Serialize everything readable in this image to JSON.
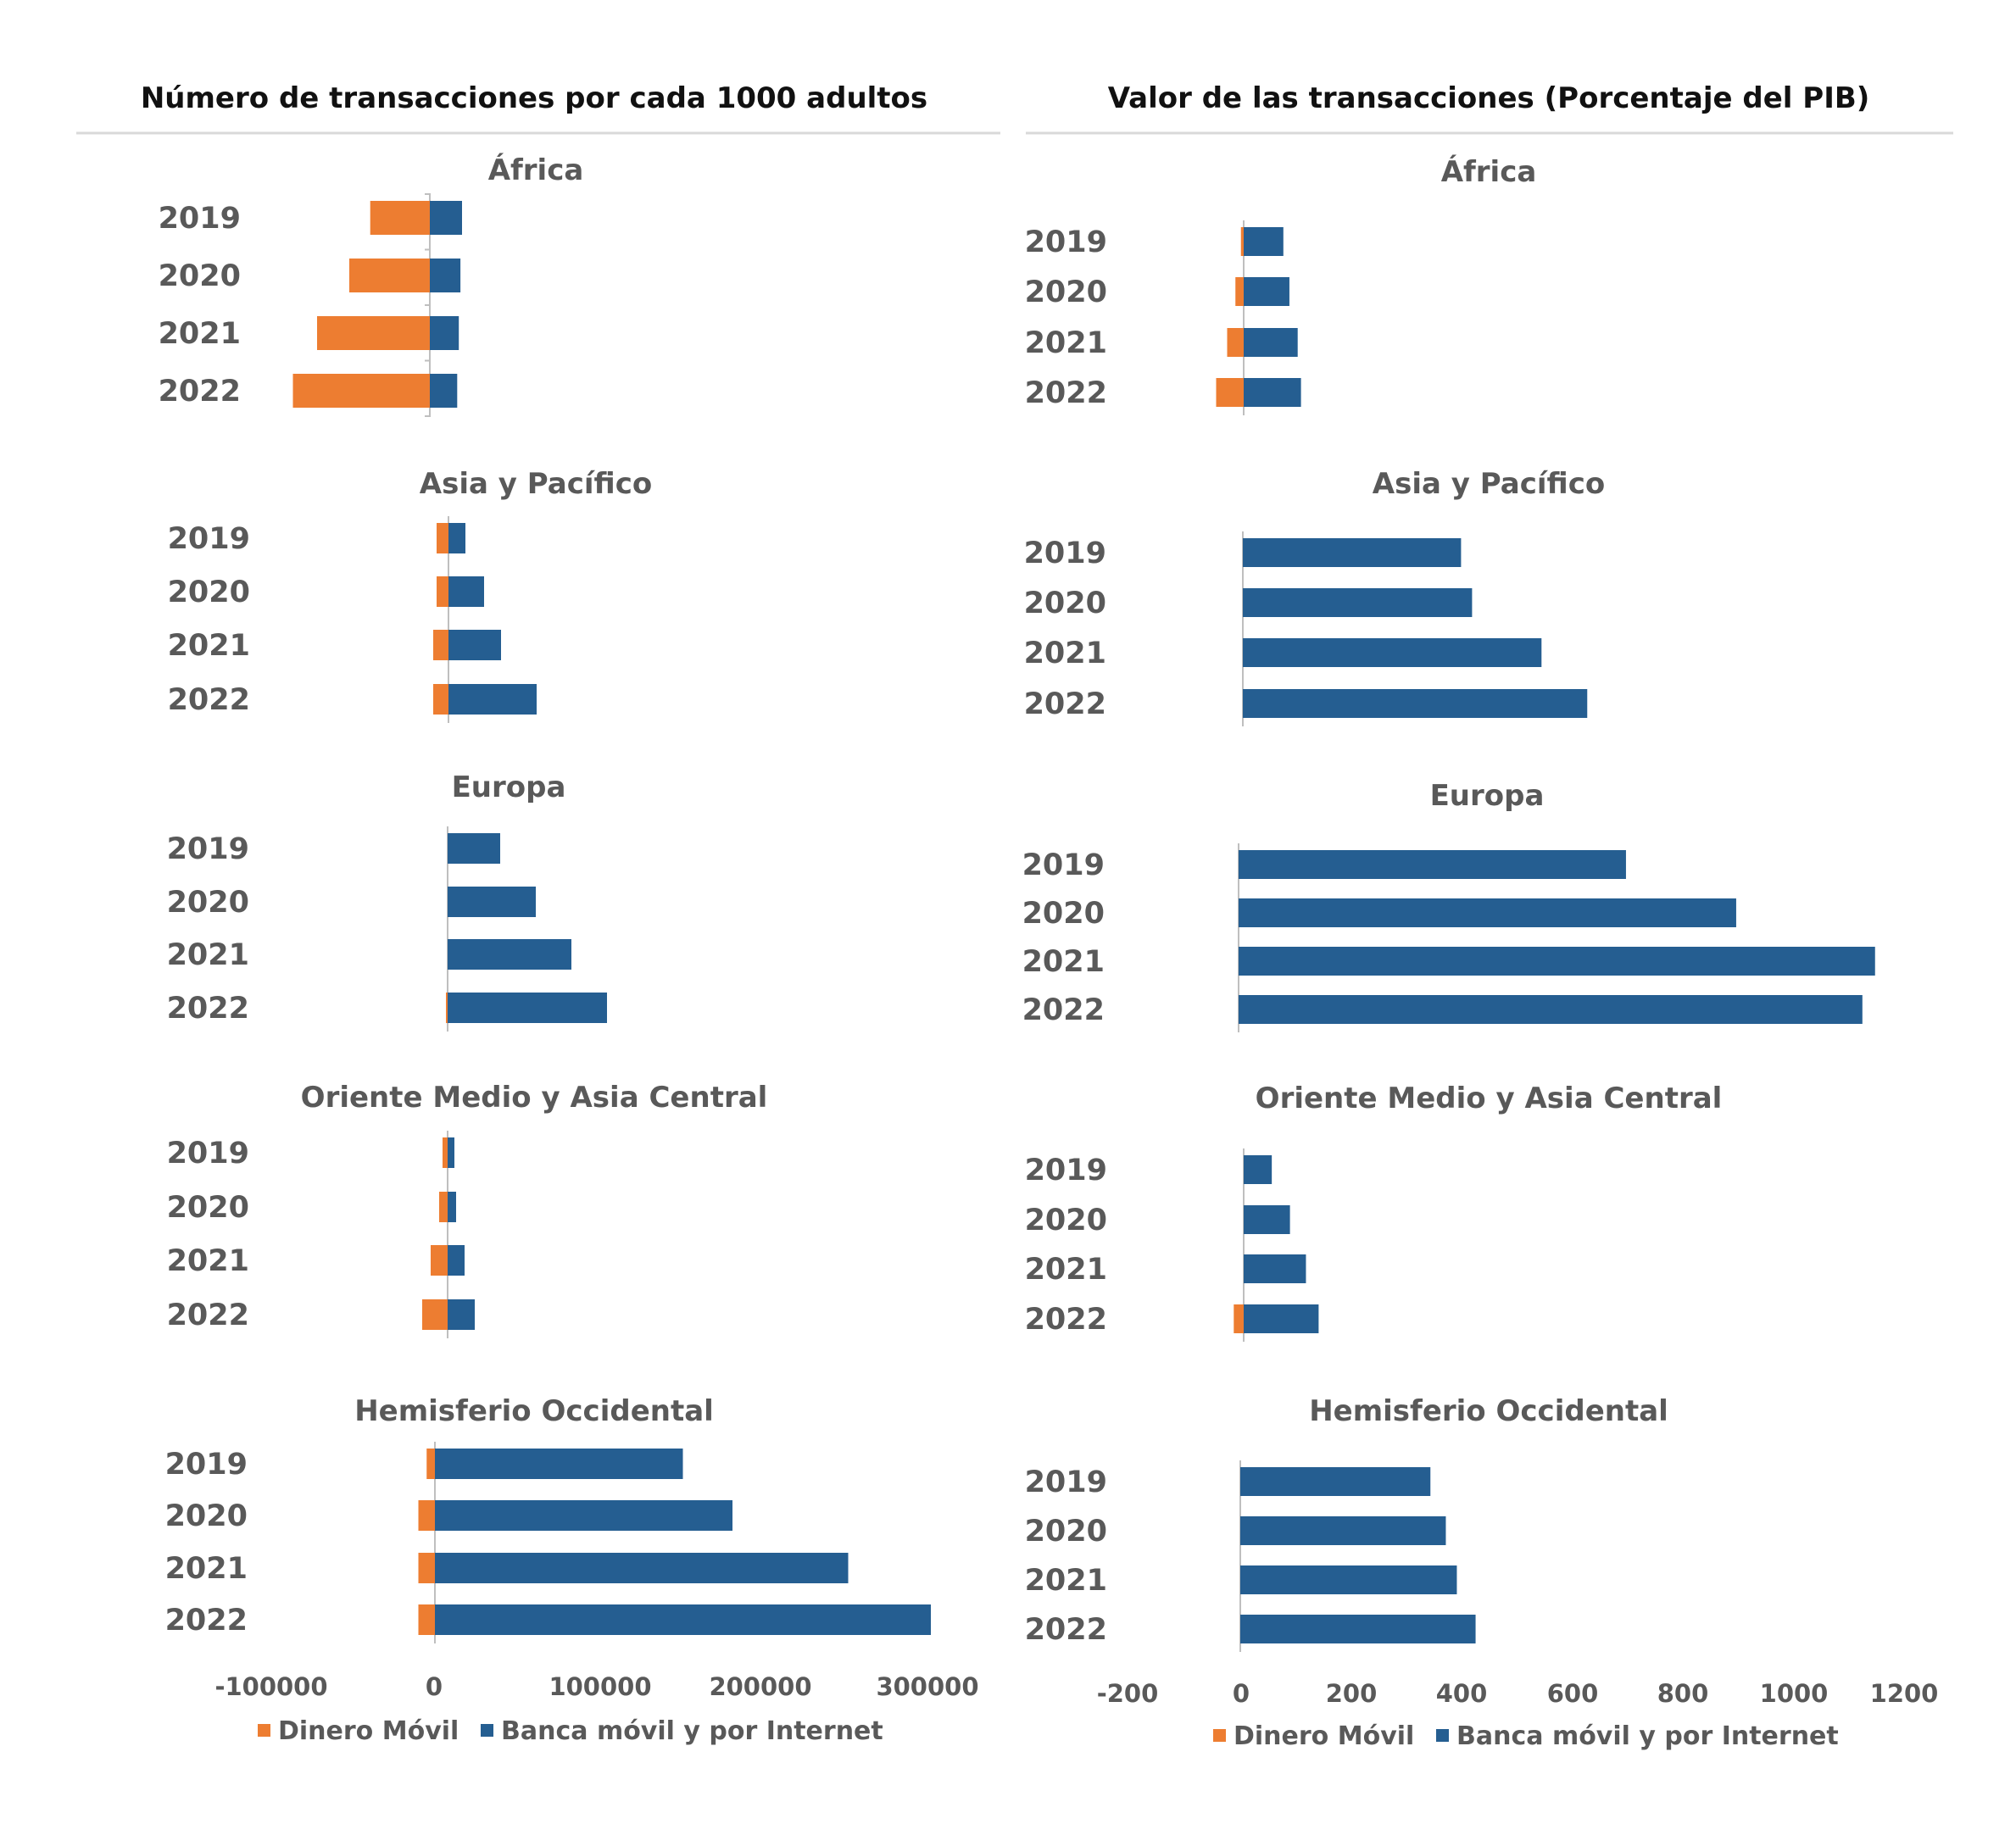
{
  "colors": {
    "mobile_money": "#ED7D31",
    "banking": "#255E91",
    "axis": "#BFBFBF",
    "text": "#595959"
  },
  "years": [
    "2019",
    "2020",
    "2021",
    "2022"
  ],
  "chart_data": [
    {
      "type": "bar",
      "orientation": "horizontal",
      "stacked": true,
      "title": "Número de transacciones por cada 1000 adultos",
      "xlim": [
        -100000,
        300000
      ],
      "xticks": [
        "-100000",
        "0",
        "100000",
        "200000",
        "300000"
      ],
      "legend": [
        "Dinero Móvil",
        "Banca móvil y por Internet"
      ],
      "legend_position": "bottom",
      "regions": [
        {
          "name": "África",
          "categories": [
            "2019",
            "2020",
            "2021",
            "2022"
          ],
          "series": [
            {
              "name": "Dinero Móvil",
              "values": [
                -37000,
                -50000,
                -70000,
                -85000
              ]
            },
            {
              "name": "Banca móvil y por Internet",
              "values": [
                20000,
                19000,
                18000,
                17000
              ]
            }
          ]
        },
        {
          "name": "Asia y Pacífico",
          "categories": [
            "2019",
            "2020",
            "2021",
            "2022"
          ],
          "series": [
            {
              "name": "Dinero Móvil",
              "values": [
                -7000,
                -7000,
                -9000,
                -9000
              ]
            },
            {
              "name": "Banca móvil y por Internet",
              "values": [
                10000,
                21000,
                31000,
                52000
              ]
            }
          ]
        },
        {
          "name": "Europa",
          "categories": [
            "2019",
            "2020",
            "2021",
            "2022"
          ],
          "series": [
            {
              "name": "Dinero Móvil",
              "values": [
                0,
                0,
                0,
                -1000
              ]
            },
            {
              "name": "Banca móvil y por Internet",
              "values": [
                31000,
                52000,
                73000,
                94000
              ]
            }
          ]
        },
        {
          "name": "Oriente Medio y Asia Central",
          "categories": [
            "2019",
            "2020",
            "2021",
            "2022"
          ],
          "series": [
            {
              "name": "Dinero Móvil",
              "values": [
                -3000,
                -5000,
                -10000,
                -15000
              ]
            },
            {
              "name": "Banca móvil y por Internet",
              "values": [
                4000,
                5000,
                10000,
                16000
              ]
            }
          ]
        },
        {
          "name": "Hemisferio Occidental",
          "categories": [
            "2019",
            "2020",
            "2021",
            "2022"
          ],
          "series": [
            {
              "name": "Dinero Móvil",
              "values": [
                -5000,
                -10000,
                -10000,
                -10000
              ]
            },
            {
              "name": "Banca móvil y por Internet",
              "values": [
                150000,
                180000,
                250000,
                300000
              ]
            }
          ]
        }
      ]
    },
    {
      "type": "bar",
      "orientation": "horizontal",
      "stacked": true,
      "title": "Valor de las transacciones (Porcentaje del PIB)",
      "xlim": [
        -200,
        1200
      ],
      "xticks": [
        "-200",
        "0",
        "200",
        "400",
        "600",
        "800",
        "1000",
        "1200"
      ],
      "legend": [
        "Dinero Móvil",
        "Banca móvil y por Internet"
      ],
      "legend_position": "bottom",
      "regions": [
        {
          "name": "África",
          "categories": [
            "2019",
            "2020",
            "2021",
            "2022"
          ],
          "series": [
            {
              "name": "Dinero Móvil",
              "values": [
                -5,
                -15,
                -30,
                -50
              ]
            },
            {
              "name": "Banca móvil y por Internet",
              "values": [
                72,
                83,
                98,
                104
              ]
            }
          ]
        },
        {
          "name": "Asia y Pacífico",
          "categories": [
            "2019",
            "2020",
            "2021",
            "2022"
          ],
          "series": [
            {
              "name": "Dinero Móvil",
              "values": [
                0,
                0,
                0,
                0
              ]
            },
            {
              "name": "Banca móvil y por Internet",
              "values": [
                396,
                416,
                542,
                625
              ]
            }
          ]
        },
        {
          "name": "Europa",
          "categories": [
            "2019",
            "2020",
            "2021",
            "2022"
          ],
          "series": [
            {
              "name": "Dinero Móvil",
              "values": [
                0,
                0,
                0,
                0
              ]
            },
            {
              "name": "Banca móvil y por Internet",
              "values": [
                703,
                903,
                1155,
                1132
              ]
            }
          ]
        },
        {
          "name": "Oriente Medio y Asia Central",
          "categories": [
            "2019",
            "2020",
            "2021",
            "2022"
          ],
          "series": [
            {
              "name": "Dinero Móvil",
              "values": [
                0,
                0,
                0,
                -18
              ]
            },
            {
              "name": "Banca móvil y por Internet",
              "values": [
                51,
                84,
                113,
                136
              ]
            }
          ]
        },
        {
          "name": "Hemisferio Occidental",
          "categories": [
            "2019",
            "2020",
            "2021",
            "2022"
          ],
          "series": [
            {
              "name": "Dinero Móvil",
              "values": [
                0,
                0,
                0,
                0
              ]
            },
            {
              "name": "Banca móvil y por Internet",
              "values": [
                345,
                373,
                393,
                427
              ]
            }
          ]
        }
      ]
    }
  ]
}
